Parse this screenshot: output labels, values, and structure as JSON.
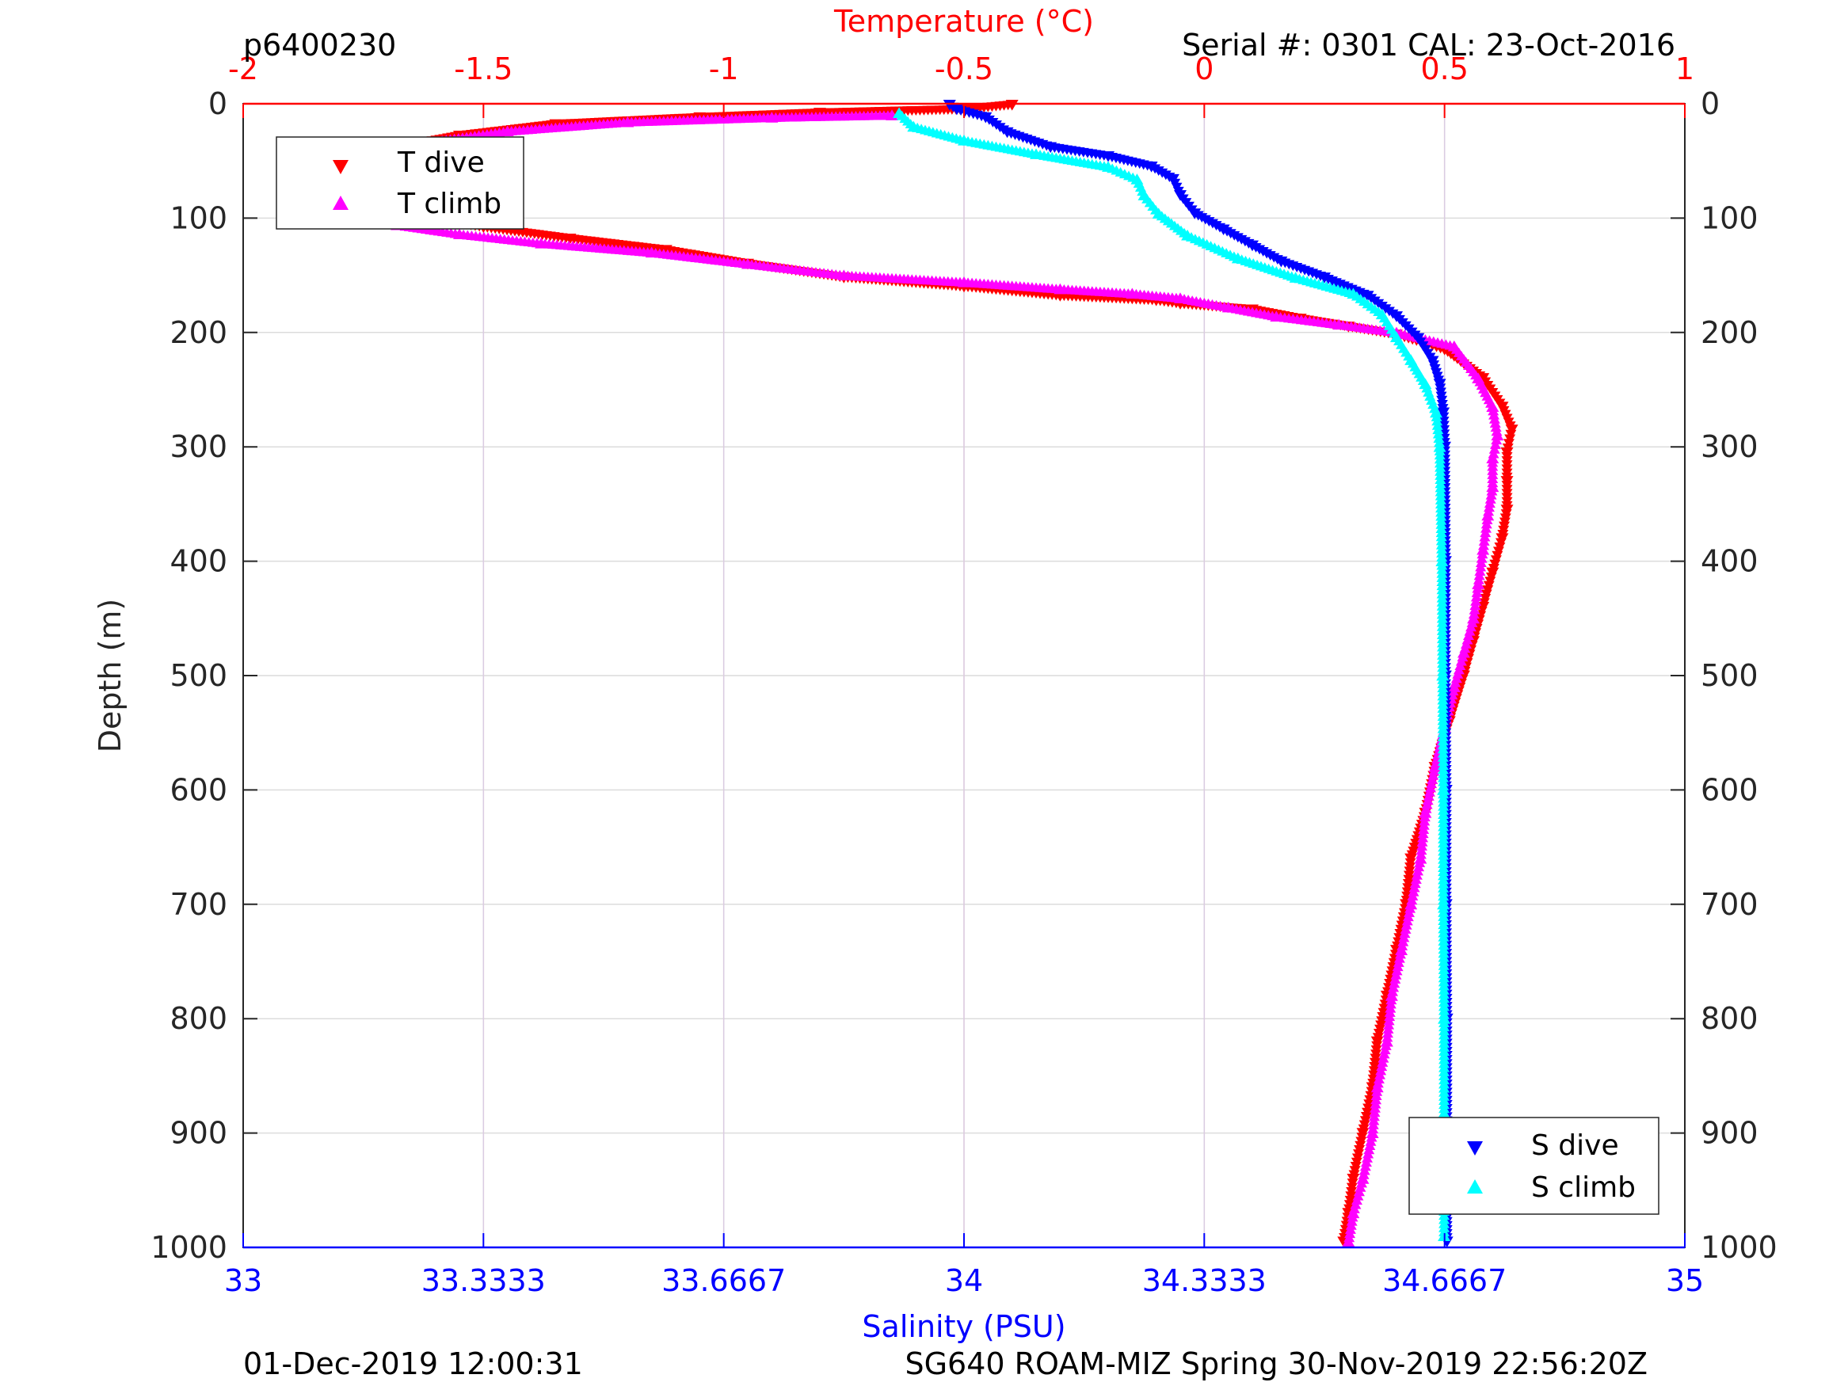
{
  "header": {
    "left": "p6400230",
    "right": "Serial #: 0301  CAL: 23-Oct-2016"
  },
  "footer": {
    "left": "01-Dec-2019 12:00:31",
    "right": "SG640 ROAM-MIZ Spring 30-Nov-2019 22:56:20Z"
  },
  "chart_data": {
    "type": "scatter",
    "y_axis": {
      "label": "Depth (m)",
      "range": [
        0,
        1000
      ],
      "inverted": true,
      "ticks": [
        0,
        100,
        200,
        300,
        400,
        500,
        600,
        700,
        800,
        900,
        1000
      ],
      "tick_labels": [
        "0",
        "100",
        "200",
        "300",
        "400",
        "500",
        "600",
        "700",
        "800",
        "900",
        "1000"
      ]
    },
    "temperature_axis": {
      "label": "Temperature (°C)",
      "position": "top",
      "range": [
        -2,
        1
      ],
      "ticks": [
        -2,
        -1.5,
        -1,
        -0.5,
        0,
        0.5,
        1
      ],
      "tick_labels": [
        "-2",
        "-1.5",
        "-1",
        "-0.5",
        "0",
        "0.5",
        "1"
      ],
      "color": "#ff0000"
    },
    "salinity_axis": {
      "label": "Salinity (PSU)",
      "position": "bottom",
      "range": [
        33,
        35
      ],
      "ticks": [
        33,
        33.3333,
        33.6667,
        34,
        34.3333,
        34.6667,
        35
      ],
      "tick_labels": [
        "33",
        "33.3333",
        "33.6667",
        "34",
        "34.3333",
        "34.6667",
        "35"
      ],
      "color": "#0000ff"
    },
    "grid": true,
    "legends": [
      {
        "placement": "top-left",
        "entries": [
          {
            "label": "T dive",
            "marker": "triangle-down",
            "color": "#ff0000"
          },
          {
            "label": "T climb",
            "marker": "triangle-up",
            "color": "#ff00ff"
          }
        ]
      },
      {
        "placement": "bottom-right",
        "entries": [
          {
            "label": "S dive",
            "marker": "triangle-down",
            "color": "#0000ff"
          },
          {
            "label": "S climb",
            "marker": "triangle-up",
            "color": "#00ffff"
          }
        ]
      }
    ],
    "series": [
      {
        "name": "T dive",
        "axis": "temperature",
        "marker": "triangle-down",
        "color": "#ff0000",
        "points": [
          [
            -0.4,
            1
          ],
          [
            -0.5,
            5
          ],
          [
            -0.8,
            8
          ],
          [
            -1.05,
            12
          ],
          [
            -1.35,
            18
          ],
          [
            -1.55,
            28
          ],
          [
            -1.68,
            38
          ],
          [
            -1.75,
            50
          ],
          [
            -1.79,
            60
          ],
          [
            -1.8,
            72
          ],
          [
            -1.78,
            82
          ],
          [
            -1.72,
            92
          ],
          [
            -1.62,
            100
          ],
          [
            -1.5,
            108
          ],
          [
            -1.32,
            118
          ],
          [
            -1.12,
            128
          ],
          [
            -0.95,
            140
          ],
          [
            -0.75,
            152
          ],
          [
            -0.5,
            160
          ],
          [
            -0.3,
            168
          ],
          [
            -0.1,
            172
          ],
          [
            -0.05,
            175
          ],
          [
            0.1,
            180
          ],
          [
            0.2,
            188
          ],
          [
            0.3,
            195
          ],
          [
            0.4,
            202
          ],
          [
            0.5,
            215
          ],
          [
            0.58,
            240
          ],
          [
            0.62,
            265
          ],
          [
            0.64,
            285
          ],
          [
            0.63,
            305
          ],
          [
            0.63,
            330
          ],
          [
            0.63,
            355
          ],
          [
            0.62,
            380
          ],
          [
            0.6,
            410
          ],
          [
            0.58,
            440
          ],
          [
            0.56,
            470
          ],
          [
            0.54,
            500
          ],
          [
            0.51,
            540
          ],
          [
            0.48,
            580
          ],
          [
            0.46,
            620
          ],
          [
            0.43,
            660
          ],
          [
            0.42,
            700
          ],
          [
            0.4,
            740
          ],
          [
            0.38,
            780
          ],
          [
            0.36,
            820
          ],
          [
            0.35,
            860
          ],
          [
            0.33,
            900
          ],
          [
            0.31,
            940
          ],
          [
            0.3,
            970
          ],
          [
            0.29,
            995
          ]
        ]
      },
      {
        "name": "T climb",
        "axis": "temperature",
        "marker": "triangle-up",
        "color": "#ff00ff",
        "points": [
          [
            -0.65,
            10
          ],
          [
            -0.9,
            12
          ],
          [
            -1.2,
            16
          ],
          [
            -1.45,
            24
          ],
          [
            -1.62,
            34
          ],
          [
            -1.74,
            46
          ],
          [
            -1.8,
            58
          ],
          [
            -1.82,
            70
          ],
          [
            -1.81,
            84
          ],
          [
            -1.76,
            96
          ],
          [
            -1.68,
            106
          ],
          [
            -1.55,
            114
          ],
          [
            -1.38,
            122
          ],
          [
            -1.15,
            130
          ],
          [
            -0.95,
            140
          ],
          [
            -0.75,
            150
          ],
          [
            -0.5,
            156
          ],
          [
            -0.3,
            162
          ],
          [
            -0.15,
            166
          ],
          [
            -0.05,
            170
          ],
          [
            0.05,
            178
          ],
          [
            0.15,
            186
          ],
          [
            0.28,
            193
          ],
          [
            0.4,
            200
          ],
          [
            0.52,
            212
          ],
          [
            0.57,
            240
          ],
          [
            0.6,
            265
          ],
          [
            0.61,
            290
          ],
          [
            0.6,
            310
          ],
          [
            0.6,
            335
          ],
          [
            0.59,
            360
          ],
          [
            0.58,
            390
          ],
          [
            0.57,
            420
          ],
          [
            0.56,
            450
          ],
          [
            0.54,
            480
          ],
          [
            0.52,
            510
          ],
          [
            0.5,
            545
          ],
          [
            0.48,
            580
          ],
          [
            0.46,
            620
          ],
          [
            0.45,
            660
          ],
          [
            0.43,
            700
          ],
          [
            0.41,
            740
          ],
          [
            0.39,
            780
          ],
          [
            0.38,
            820
          ],
          [
            0.36,
            860
          ],
          [
            0.35,
            900
          ],
          [
            0.33,
            940
          ],
          [
            0.31,
            970
          ],
          [
            0.3,
            995
          ]
        ]
      },
      {
        "name": "S dive",
        "axis": "salinity",
        "marker": "triangle-down",
        "color": "#0000ff",
        "points": [
          [
            33.98,
            1
          ],
          [
            33.99,
            5
          ],
          [
            34.03,
            12
          ],
          [
            34.06,
            25
          ],
          [
            34.12,
            38
          ],
          [
            34.2,
            46
          ],
          [
            34.26,
            55
          ],
          [
            34.29,
            66
          ],
          [
            34.3,
            80
          ],
          [
            34.32,
            96
          ],
          [
            34.36,
            110
          ],
          [
            34.4,
            124
          ],
          [
            34.44,
            138
          ],
          [
            34.5,
            152
          ],
          [
            34.56,
            168
          ],
          [
            34.6,
            186
          ],
          [
            34.63,
            205
          ],
          [
            34.65,
            225
          ],
          [
            34.66,
            245
          ],
          [
            34.665,
            270
          ],
          [
            34.667,
            300
          ],
          [
            34.668,
            400
          ],
          [
            34.668,
            500
          ],
          [
            34.669,
            600
          ],
          [
            34.669,
            700
          ],
          [
            34.67,
            800
          ],
          [
            34.67,
            900
          ],
          [
            34.67,
            995
          ]
        ]
      },
      {
        "name": "S climb",
        "axis": "salinity",
        "marker": "triangle-up",
        "color": "#00ffff",
        "points": [
          [
            33.91,
            8
          ],
          [
            33.93,
            20
          ],
          [
            34.0,
            32
          ],
          [
            34.1,
            44
          ],
          [
            34.2,
            55
          ],
          [
            34.24,
            66
          ],
          [
            34.25,
            80
          ],
          [
            34.27,
            96
          ],
          [
            34.31,
            115
          ],
          [
            34.38,
            135
          ],
          [
            34.46,
            152
          ],
          [
            34.54,
            166
          ],
          [
            34.58,
            184
          ],
          [
            34.6,
            204
          ],
          [
            34.62,
            224
          ],
          [
            34.64,
            245
          ],
          [
            34.655,
            270
          ],
          [
            34.66,
            300
          ],
          [
            34.663,
            400
          ],
          [
            34.664,
            500
          ],
          [
            34.665,
            600
          ],
          [
            34.665,
            700
          ],
          [
            34.666,
            800
          ],
          [
            34.666,
            900
          ],
          [
            34.666,
            990
          ]
        ]
      }
    ]
  }
}
